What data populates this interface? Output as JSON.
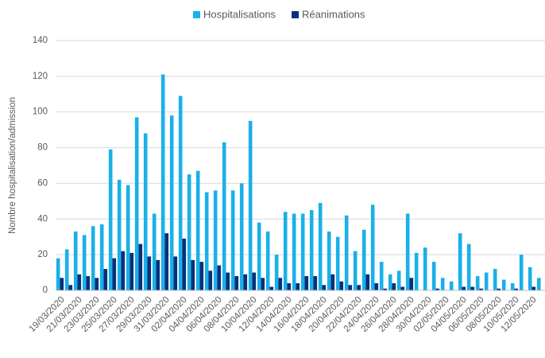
{
  "chart_data": {
    "type": "bar",
    "y_label": "Nombre hospitalisation/admission",
    "categories": [
      "19/03/2020",
      null,
      "21/03/2020",
      null,
      "23/03/2020",
      null,
      "25/03/2020",
      null,
      "27/03/2020",
      null,
      "29/03/2020",
      null,
      "31/03/2020",
      null,
      "02/04/2020",
      null,
      "04/04/2020",
      null,
      "06/04/2020",
      null,
      "08/04/2020",
      null,
      "10/04/2020",
      null,
      "12/04/2020",
      null,
      "14/04/2020",
      null,
      "16/04/2020",
      null,
      "18/04/2020",
      null,
      "20/04/2020",
      null,
      "22/04/2020",
      null,
      "24/04/2020",
      null,
      "26/04/2020",
      null,
      "28/04/2020",
      null,
      "30/04/2020",
      null,
      "02/05/2020",
      null,
      "04/05/2020",
      null,
      "06/05/2020",
      null,
      "08/05/2020",
      null,
      "10/05/2020",
      null,
      "12/05/2020",
      null
    ],
    "series": [
      {
        "name": "Hospitalisations",
        "color": "#1ab0e8",
        "values": [
          18,
          23,
          33,
          31,
          36,
          37,
          79,
          62,
          59,
          97,
          88,
          43,
          121,
          98,
          109,
          65,
          67,
          55,
          56,
          83,
          56,
          60,
          95,
          38,
          33,
          20,
          44,
          43,
          43,
          45,
          49,
          33,
          30,
          42,
          22,
          34,
          48,
          16,
          9,
          11,
          43,
          21,
          24,
          16,
          7,
          5,
          32,
          26,
          8,
          10,
          12,
          6,
          4,
          20,
          13,
          7
        ]
      },
      {
        "name": "Réanimations",
        "color": "#0c2f7a",
        "values": [
          7,
          3,
          9,
          8,
          7,
          12,
          18,
          22,
          21,
          26,
          19,
          17,
          32,
          19,
          29,
          17,
          16,
          11,
          14,
          10,
          8,
          9,
          10,
          7,
          2,
          7,
          4,
          4,
          8,
          8,
          3,
          9,
          5,
          3,
          3,
          9,
          4,
          1,
          4,
          2,
          7,
          0,
          0,
          1,
          0,
          0,
          2,
          2,
          1,
          0,
          1,
          0,
          1,
          0,
          2,
          0
        ]
      }
    ],
    "ylim": [
      0,
      140
    ],
    "yticks": [
      0,
      20,
      40,
      60,
      80,
      100,
      120,
      140
    ],
    "grid": true,
    "legend": "top"
  }
}
